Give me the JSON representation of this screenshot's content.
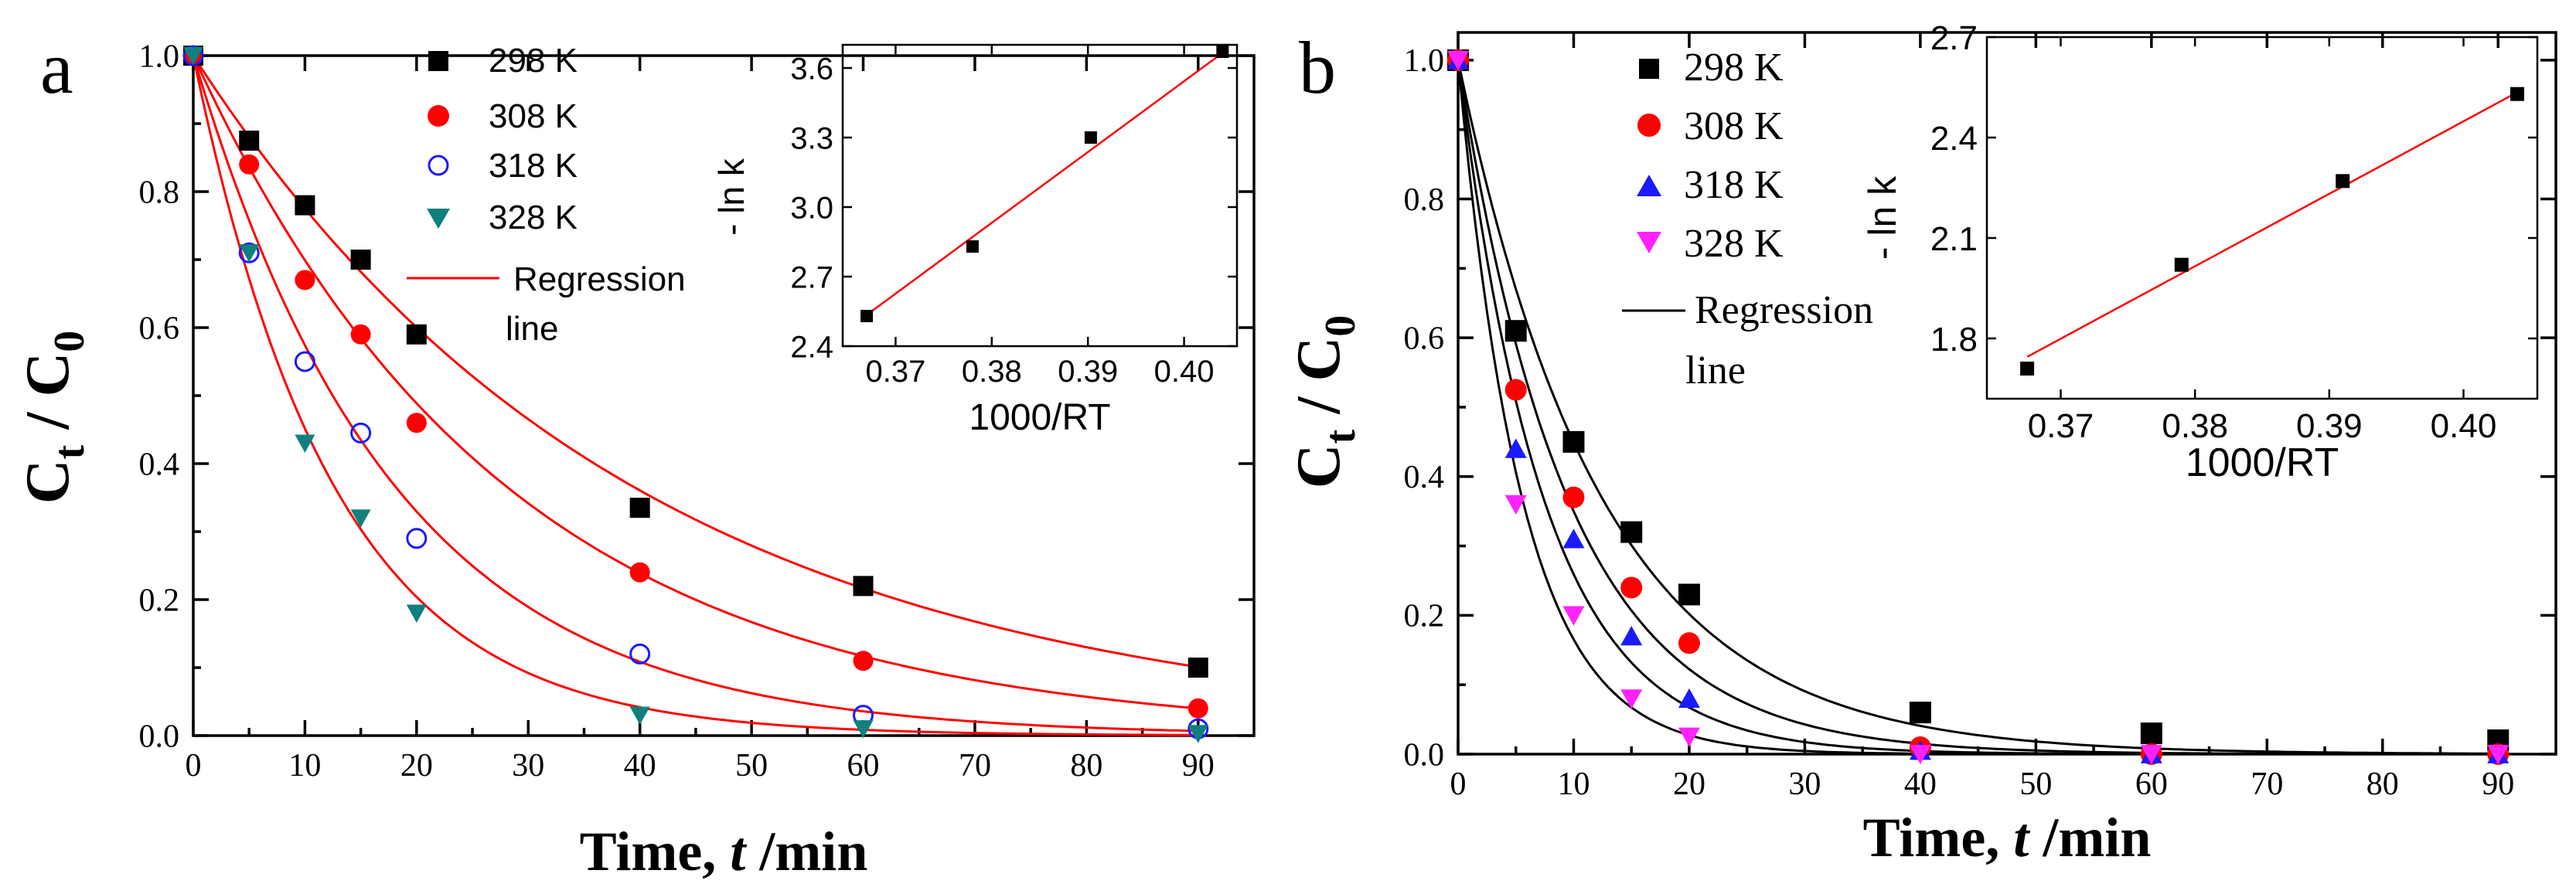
{
  "colors": {
    "black": "#000000",
    "red": "#ff0000",
    "blue": "#1a1aff",
    "teal": "#0f7f7f",
    "magenta": "#ff22ff"
  },
  "chart_data": [
    {
      "panel_label": "a",
      "type": "scatter",
      "xlabel_main": "Time, ",
      "xlabel_var": "t",
      "xlabel_unit": " /min",
      "ylabel_main": "C",
      "ylabel_sub": "t",
      "ylabel_mid": " / C",
      "ylabel_sub2": "0",
      "xlim": [
        0,
        95
      ],
      "ylim": [
        0,
        1.0
      ],
      "xticks": [
        0,
        10,
        20,
        30,
        40,
        50,
        60,
        70,
        80,
        90
      ],
      "yticks": [
        0.0,
        0.2,
        0.4,
        0.6,
        0.8,
        1.0
      ],
      "ytick_labels": [
        "0.0",
        "0.2",
        "0.4",
        "0.6",
        "0.8",
        "1.0"
      ],
      "regression_color": "#ff0000",
      "regression_label_1": "Regression",
      "regression_label_2": "line",
      "series": [
        {
          "name": "298 K",
          "marker": "square",
          "color": "#000000",
          "k": 0.0255,
          "x": [
            0,
            5,
            10,
            15,
            20,
            40,
            60,
            90
          ],
          "y": [
            1.0,
            0.875,
            0.78,
            0.7,
            0.59,
            0.335,
            0.22,
            0.1
          ]
        },
        {
          "name": "308 K",
          "marker": "circle",
          "color": "#ff0000",
          "k": 0.0358,
          "x": [
            0,
            5,
            10,
            15,
            20,
            40,
            60,
            90
          ],
          "y": [
            1.0,
            0.84,
            0.67,
            0.59,
            0.46,
            0.24,
            0.11,
            0.04
          ]
        },
        {
          "name": "318 K",
          "marker": "open-circle",
          "color": "#1a1aff",
          "k": 0.0555,
          "x": [
            0,
            5,
            10,
            15,
            20,
            40,
            60,
            90
          ],
          "y": [
            1.0,
            0.71,
            0.55,
            0.445,
            0.29,
            0.12,
            0.03,
            0.01
          ]
        },
        {
          "name": "328 K",
          "marker": "down-triangle",
          "color": "#0f7f7f",
          "k": 0.0795,
          "x": [
            0,
            5,
            10,
            15,
            20,
            40,
            60,
            90
          ],
          "y": [
            1.0,
            0.71,
            0.43,
            0.32,
            0.18,
            0.03,
            0.01,
            0.003
          ]
        }
      ],
      "inset": {
        "type": "scatter",
        "xlabel": "1000/RT",
        "ylabel": "- ln k",
        "xlim": [
          0.3645,
          0.4055
        ],
        "ylim": [
          2.4,
          3.7
        ],
        "xticks": [
          0.37,
          0.38,
          0.39,
          0.4
        ],
        "xtick_labels": [
          "0.37",
          "0.38",
          "0.39",
          "0.40"
        ],
        "yticks": [
          2.4,
          2.7,
          3.0,
          3.3,
          3.6
        ],
        "ytick_labels": [
          "2.4",
          "2.7",
          "3.0",
          "3.3",
          "3.6"
        ],
        "x": [
          0.367,
          0.378,
          0.3903,
          0.404
        ],
        "y": [
          2.53,
          2.83,
          3.3,
          3.67
        ],
        "fit": [
          [
            0.367,
            2.535
          ],
          [
            0.404,
            3.665
          ]
        ],
        "fit_color": "#ff0000"
      }
    },
    {
      "panel_label": "b",
      "type": "scatter",
      "xlabel_main": "Time, ",
      "xlabel_var": "t",
      "xlabel_unit": " /min",
      "ylabel_main": "C",
      "ylabel_sub": "t",
      "ylabel_mid": " / C",
      "ylabel_sub2": "0",
      "xlim": [
        0,
        95
      ],
      "ylim": [
        0,
        1.04
      ],
      "xticks": [
        0,
        10,
        20,
        30,
        40,
        50,
        60,
        70,
        80,
        90
      ],
      "yticks": [
        0.0,
        0.2,
        0.4,
        0.6,
        0.8,
        1.0
      ],
      "ytick_labels": [
        "0.0",
        "0.2",
        "0.4",
        "0.6",
        "0.8",
        "1.0"
      ],
      "regression_color": "#000000",
      "regression_label_1": "Regression",
      "regression_label_2": "line",
      "series": [
        {
          "name": "298 K",
          "marker": "square",
          "color": "#000000",
          "k": 0.08,
          "x": [
            0,
            5,
            10,
            15,
            20,
            40,
            60,
            90
          ],
          "y": [
            1.0,
            0.61,
            0.45,
            0.32,
            0.23,
            0.06,
            0.03,
            0.02
          ]
        },
        {
          "name": "308 K",
          "marker": "circle",
          "color": "#ff0000",
          "k": 0.105,
          "x": [
            0,
            5,
            10,
            15,
            20,
            40,
            60,
            90
          ],
          "y": [
            1.0,
            0.525,
            0.37,
            0.24,
            0.16,
            0.01,
            0.0,
            0.0
          ]
        },
        {
          "name": "318 K",
          "marker": "up-triangle",
          "color": "#1a1aff",
          "k": 0.135,
          "x": [
            0,
            5,
            10,
            15,
            20,
            40,
            60,
            90
          ],
          "y": [
            1.0,
            0.44,
            0.31,
            0.17,
            0.08,
            0.005,
            0.0,
            0.0
          ]
        },
        {
          "name": "328 K",
          "marker": "down-triangle",
          "color": "#ff22ff",
          "k": 0.18,
          "x": [
            0,
            5,
            10,
            15,
            20,
            40,
            60,
            90
          ],
          "y": [
            1.0,
            0.36,
            0.2,
            0.08,
            0.025,
            0.0,
            0.0,
            0.0
          ]
        }
      ],
      "inset": {
        "type": "scatter",
        "xlabel": "1000/RT",
        "ylabel": "- ln k",
        "xlim": [
          0.3645,
          0.4055
        ],
        "ylim": [
          1.62,
          2.7
        ],
        "xticks": [
          0.37,
          0.38,
          0.39,
          0.4
        ],
        "xtick_labels": [
          "0.37",
          "0.38",
          "0.39",
          "0.40"
        ],
        "yticks": [
          1.8,
          2.1,
          2.4,
          2.7
        ],
        "ytick_labels": [
          "1.8",
          "2.1",
          "2.4",
          "2.7"
        ],
        "x": [
          0.3675,
          0.379,
          0.391,
          0.404
        ],
        "y": [
          1.71,
          2.02,
          2.27,
          2.53
        ],
        "fit": [
          [
            0.3675,
            1.745
          ],
          [
            0.404,
            2.535
          ]
        ],
        "fit_color": "#ff0000"
      }
    }
  ]
}
